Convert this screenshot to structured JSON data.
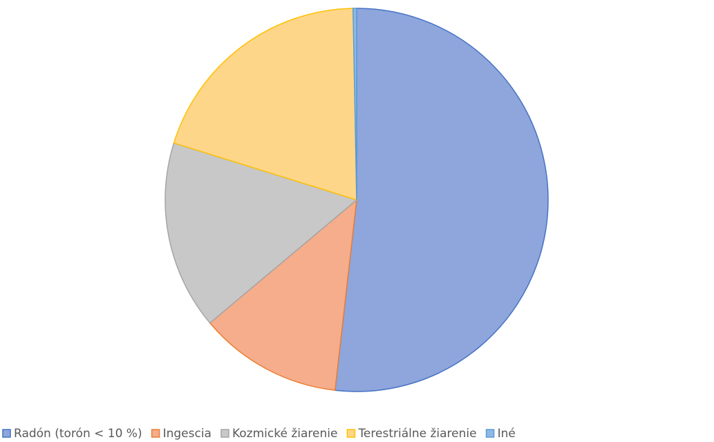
{
  "chart_data": {
    "type": "pie",
    "categories": [
      "Radón (torón < 10 %)",
      "Ingescia",
      "Kozmické žiarenie",
      "Terestriálne žiarenie",
      "Iné"
    ],
    "values": [
      51.8,
      12.1,
      15.9,
      19.9,
      0.3
    ],
    "colors": [
      "#8ea6dc",
      "#f5ad8c",
      "#c8c8c8",
      "#fed68a",
      "#8fb9e6"
    ],
    "edge_colors": [
      "#4472c4",
      "#ed7d31",
      "#a5a5a5",
      "#ffc000",
      "#5b9bd5"
    ],
    "legend": "bottom"
  }
}
